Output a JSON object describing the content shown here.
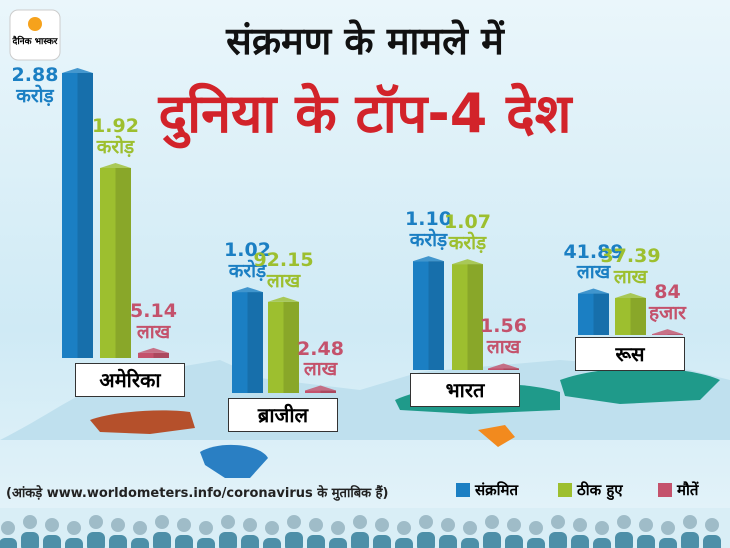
{
  "logo": "दैनिक भास्कर",
  "chart_data": {
    "type": "bar",
    "title": "संक्रमण के मामले में",
    "subtitle": "दुनिया के टॉप-4 देश",
    "note": "(आंकड़े www.worldometers.info/coronavirus के मुताबिक हैं)",
    "categories": [
      "अमेरिका",
      "ब्राजील",
      "भारत",
      "रूस"
    ],
    "series": [
      {
        "name": "संक्रमित",
        "color": "#1b7fc3",
        "values": [
          28800000,
          10200000,
          11000000,
          4189000
        ],
        "value_labels": [
          "2.88\nकरोड़",
          "1.02\nकरोड़",
          "1.10\nकरोड़",
          "41.89\nलाख"
        ]
      },
      {
        "name": "ठीक हुए",
        "color": "#9dbf2f",
        "values": [
          19200000,
          9215000,
          10700000,
          3739000
        ],
        "value_labels": [
          "1.92\nकरोड़",
          "92.15\nलाख",
          "1.07\nकरोड़",
          "37.39\nलाख"
        ]
      },
      {
        "name": "मौतें",
        "color": "#c4526c",
        "values": [
          514000,
          248000,
          156000,
          84000
        ],
        "value_labels": [
          "5.14\nलाख",
          "2.48\nलाख",
          "1.56\nलाख",
          "84\nहजार"
        ]
      }
    ]
  }
}
